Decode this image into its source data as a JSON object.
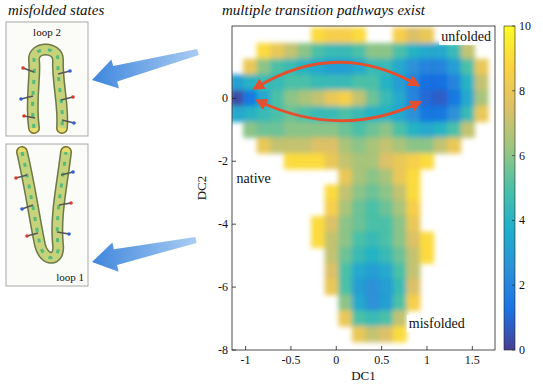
{
  "chart_data": {
    "type": "heatmap",
    "title": "multiple transition pathways exist",
    "inset_title": "misfolded states",
    "inset_labels": [
      "loop 2",
      "loop 1"
    ],
    "annotations": [
      "unfolded",
      "native",
      "misfolded"
    ],
    "x_label": "DC1",
    "y_label": "DC2",
    "xlim": [
      -1.15,
      1.75
    ],
    "ylim": [
      -8,
      2.3
    ],
    "xticks": [
      -1,
      -0.5,
      0,
      0.5,
      1,
      1.5
    ],
    "yticks": [
      -8,
      -6,
      -4,
      -2,
      0
    ],
    "grid": false,
    "zlim": [
      0,
      10
    ],
    "zticks": [
      0,
      2,
      4,
      6,
      8,
      10
    ],
    "x": [
      -1.1,
      -0.95,
      -0.8,
      -0.65,
      -0.5,
      -0.35,
      -0.2,
      -0.05,
      0.1,
      0.25,
      0.4,
      0.55,
      0.7,
      0.85,
      1.0,
      1.15,
      1.3,
      1.45,
      1.6
    ],
    "y": [
      2.0,
      1.5,
      1.0,
      0.5,
      0,
      -0.5,
      -1.0,
      -1.5,
      -2.0,
      -2.5,
      -3.0,
      -3.5,
      -4.0,
      -4.5,
      -5.0,
      -5.5,
      -6.0,
      -6.5,
      -7.0,
      -7.5
    ],
    "z": [
      [
        null,
        null,
        null,
        null,
        null,
        null,
        9,
        8.5,
        8.5,
        9,
        null,
        null,
        8.5,
        7.5,
        8,
        null,
        null,
        null,
        null
      ],
      [
        null,
        null,
        9,
        8,
        7,
        6,
        5,
        4.5,
        4.5,
        5,
        6,
        6,
        5,
        4,
        3.5,
        3.5,
        4.5,
        7,
        null
      ],
      [
        null,
        8,
        6,
        5,
        4.5,
        4,
        3.5,
        3,
        3,
        3.5,
        4.5,
        4.5,
        3.5,
        2.5,
        2,
        2,
        3,
        5,
        8
      ],
      [
        3,
        4,
        4.5,
        4.5,
        5,
        5,
        4.5,
        4.5,
        4.5,
        5,
        5,
        4,
        3,
        2,
        1.2,
        1.2,
        2,
        4,
        7
      ],
      [
        0.3,
        1.5,
        3.5,
        5,
        6,
        6.5,
        7,
        8,
        8.5,
        7,
        5.5,
        4.5,
        3.5,
        2,
        1,
        0.8,
        1.5,
        3.5,
        6.5
      ],
      [
        3.5,
        4,
        4.5,
        5,
        5.5,
        5,
        4.5,
        4.5,
        5,
        4.5,
        4,
        4,
        3.5,
        2.5,
        1.5,
        1.5,
        2.5,
        4.5,
        8
      ],
      [
        null,
        6,
        5.5,
        5.5,
        6,
        6,
        6,
        6,
        5.5,
        5,
        5.5,
        6,
        5,
        4,
        3.5,
        4,
        5,
        7,
        null
      ],
      [
        null,
        null,
        8,
        7,
        7,
        7,
        7.5,
        7.5,
        6.5,
        6,
        6.5,
        7,
        6.5,
        6,
        6,
        7,
        8,
        null,
        null
      ],
      [
        null,
        null,
        null,
        null,
        9,
        9,
        9,
        8,
        7,
        6.5,
        6.5,
        7.5,
        8,
        8.5,
        9,
        null,
        null,
        null,
        null
      ],
      [
        null,
        null,
        null,
        null,
        null,
        null,
        null,
        null,
        8,
        6.5,
        6,
        6.5,
        8,
        9,
        null,
        null,
        null,
        null,
        null
      ],
      [
        null,
        null,
        null,
        null,
        null,
        null,
        null,
        9,
        7,
        6,
        5.5,
        6,
        7,
        9,
        null,
        null,
        null,
        null,
        null
      ],
      [
        null,
        null,
        null,
        null,
        null,
        null,
        null,
        8.5,
        6.5,
        5.5,
        5,
        5.5,
        6.5,
        8.5,
        null,
        null,
        null,
        null,
        null
      ],
      [
        null,
        null,
        null,
        null,
        null,
        null,
        9,
        7.5,
        6,
        5.5,
        5,
        5,
        6,
        8,
        null,
        null,
        null,
        null,
        null
      ],
      [
        null,
        null,
        null,
        null,
        null,
        null,
        9,
        7,
        6,
        5,
        4.5,
        5,
        6,
        7.5,
        9,
        null,
        null,
        null,
        null
      ],
      [
        null,
        null,
        null,
        null,
        null,
        null,
        null,
        7,
        5.5,
        4.5,
        4,
        4.5,
        5.5,
        7,
        9,
        null,
        null,
        null,
        null
      ],
      [
        null,
        null,
        null,
        null,
        null,
        null,
        null,
        7.5,
        5,
        3.5,
        3,
        3.5,
        5,
        7,
        null,
        null,
        null,
        null,
        null
      ],
      [
        null,
        null,
        null,
        null,
        null,
        null,
        null,
        8,
        5,
        3,
        2.5,
        3,
        4.5,
        7.5,
        null,
        null,
        null,
        null,
        null
      ],
      [
        null,
        null,
        null,
        null,
        null,
        null,
        null,
        null,
        6,
        3.5,
        2.5,
        3,
        5,
        8.5,
        null,
        null,
        null,
        null,
        null
      ],
      [
        null,
        null,
        null,
        null,
        null,
        null,
        null,
        null,
        8,
        5,
        4.5,
        5,
        7,
        null,
        null,
        null,
        null,
        null,
        null
      ],
      [
        null,
        null,
        null,
        null,
        null,
        null,
        null,
        null,
        null,
        8,
        7,
        7.5,
        9,
        null,
        null,
        null,
        null,
        null,
        null
      ]
    ]
  }
}
